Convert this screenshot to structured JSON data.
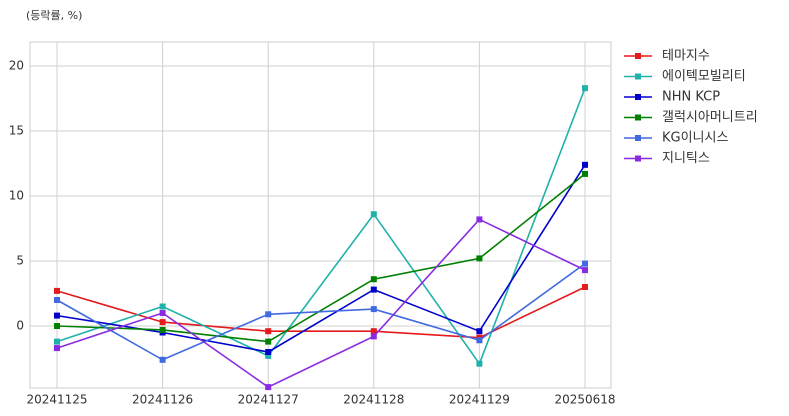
{
  "chart_data": {
    "type": "line",
    "ylabel": "(등락률, %)",
    "categories": [
      "20241125",
      "20241126",
      "20241127",
      "20241128",
      "20241129",
      "20250618"
    ],
    "series": [
      {
        "name": "테마지수",
        "color": "#e41a1c",
        "values": [
          2.7,
          0.3,
          -0.4,
          -0.4,
          -0.9,
          3.0
        ]
      },
      {
        "name": "에이텍모빌리티",
        "color": "#20b2aa",
        "values": [
          -1.2,
          1.5,
          -2.3,
          8.6,
          -2.9,
          18.3
        ]
      },
      {
        "name": "NHN KCP",
        "color": "#0000cd",
        "values": [
          0.8,
          -0.5,
          -2.0,
          2.8,
          -0.4,
          12.4
        ]
      },
      {
        "name": "갤럭시아머니트리",
        "color": "#008000",
        "values": [
          0.0,
          -0.3,
          -1.2,
          3.6,
          5.2,
          11.7
        ]
      },
      {
        "name": "KG이니시스",
        "color": "#4169e1",
        "values": [
          2.0,
          -2.6,
          0.9,
          1.3,
          -1.1,
          4.8
        ]
      },
      {
        "name": "지니틱스",
        "color": "#8a2be2",
        "values": [
          -1.7,
          1.0,
          -4.7,
          -0.8,
          8.2,
          4.3
        ]
      }
    ],
    "ylim": [
      -4.77,
      21.85
    ],
    "yticks": [
      0,
      5,
      10,
      15,
      20
    ],
    "grid": true,
    "legend": "outside-right"
  }
}
